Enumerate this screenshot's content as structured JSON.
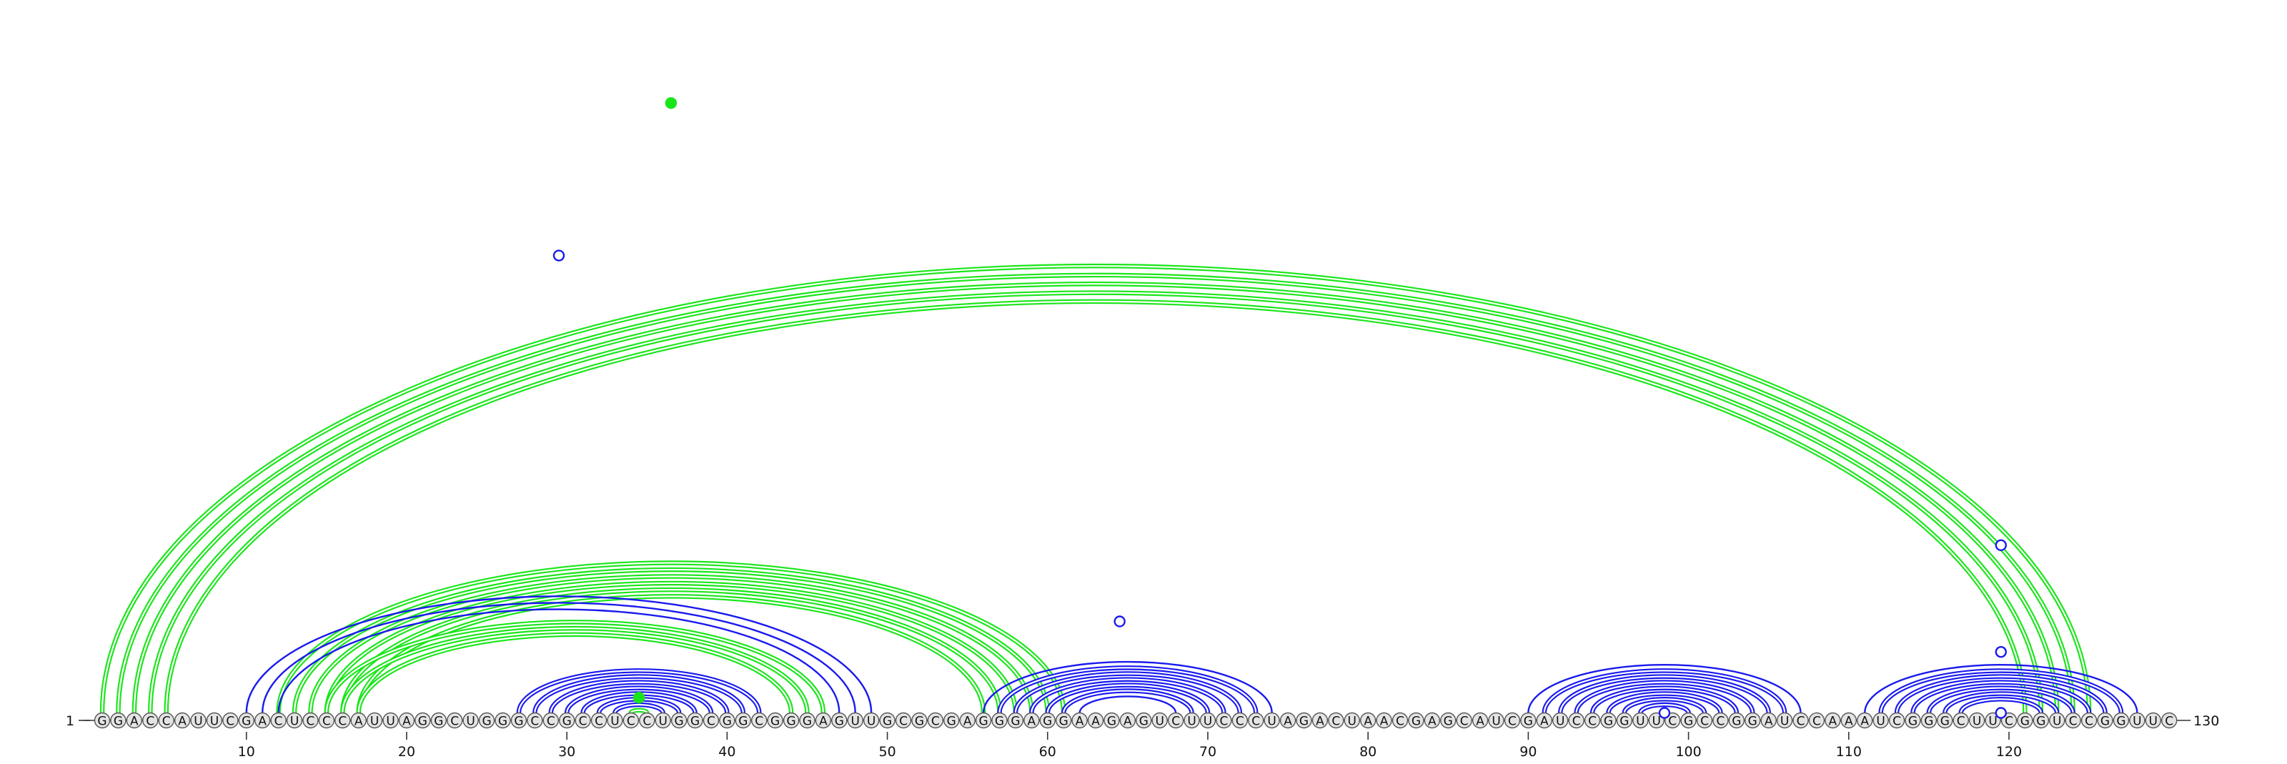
{
  "diagram": {
    "sequence": "GGACCAUUCGACUCCCAUUAGGCUGGGCCGCCUCCUGGCGGCGGGAGUUGCGCGAGGGAGGAAGAGUCUUCCCUAGACUAACGAGCAUCGAUCCGGUUCGCCGGAUCCAAAUCGGGCUUCGGUCCGGUUC",
    "start_label": "1",
    "end_label": "130",
    "ticks": [
      10,
      20,
      30,
      40,
      50,
      60,
      70,
      80,
      90,
      100,
      110,
      120
    ],
    "colors": {
      "green": "#19e619",
      "blue": "#1a1aee",
      "node_fill": "#e4e4e4",
      "node_stroke": "#555555",
      "text": "#111111"
    },
    "arcs": [
      {
        "i": 1,
        "j": 125,
        "color": "green",
        "double": true
      },
      {
        "i": 2,
        "j": 124,
        "color": "green",
        "double": true
      },
      {
        "i": 3,
        "j": 123,
        "color": "green",
        "double": true
      },
      {
        "i": 4,
        "j": 122,
        "color": "green",
        "double": true
      },
      {
        "i": 5,
        "j": 121,
        "color": "green",
        "double": true
      },
      {
        "i": 12,
        "j": 61,
        "color": "green",
        "double": true
      },
      {
        "i": 13,
        "j": 60,
        "color": "green",
        "double": true
      },
      {
        "i": 14,
        "j": 59,
        "color": "green",
        "double": true
      },
      {
        "i": 15,
        "j": 58,
        "color": "green",
        "double": true
      },
      {
        "i": 16,
        "j": 57,
        "color": "green",
        "double": true
      },
      {
        "i": 17,
        "j": 56,
        "color": "green",
        "double": true
      },
      {
        "i": 15,
        "j": 46,
        "color": "green",
        "double": true
      },
      {
        "i": 16,
        "j": 45,
        "color": "green",
        "double": true
      },
      {
        "i": 17,
        "j": 44,
        "color": "green",
        "double": true
      },
      {
        "i": 10,
        "j": 49,
        "color": "blue",
        "double": false
      },
      {
        "i": 11,
        "j": 48,
        "color": "blue",
        "double": false
      },
      {
        "i": 12,
        "j": 47,
        "color": "blue",
        "double": false
      },
      {
        "i": 27,
        "j": 42,
        "color": "blue",
        "double": true
      },
      {
        "i": 28,
        "j": 41,
        "color": "blue",
        "double": true
      },
      {
        "i": 29,
        "j": 40,
        "color": "blue",
        "double": true
      },
      {
        "i": 30,
        "j": 39,
        "color": "blue",
        "double": true
      },
      {
        "i": 31,
        "j": 38,
        "color": "blue",
        "double": true
      },
      {
        "i": 32,
        "j": 37,
        "color": "blue",
        "double": true
      },
      {
        "i": 33,
        "j": 36,
        "color": "blue",
        "double": true
      },
      {
        "i": 34,
        "j": 35,
        "color": "green",
        "double": true
      },
      {
        "i": 56,
        "j": 74,
        "color": "blue",
        "double": false
      },
      {
        "i": 57,
        "j": 73,
        "color": "blue",
        "double": true
      },
      {
        "i": 58,
        "j": 72,
        "color": "blue",
        "double": true
      },
      {
        "i": 59,
        "j": 71,
        "color": "blue",
        "double": true
      },
      {
        "i": 60,
        "j": 70,
        "color": "blue",
        "double": true
      },
      {
        "i": 61,
        "j": 69,
        "color": "blue",
        "double": true
      },
      {
        "i": 62,
        "j": 68,
        "color": "blue",
        "double": false
      },
      {
        "i": 90,
        "j": 107,
        "color": "blue",
        "double": false
      },
      {
        "i": 91,
        "j": 106,
        "color": "blue",
        "double": true
      },
      {
        "i": 92,
        "j": 105,
        "color": "blue",
        "double": true
      },
      {
        "i": 93,
        "j": 104,
        "color": "blue",
        "double": true
      },
      {
        "i": 94,
        "j": 103,
        "color": "blue",
        "double": true
      },
      {
        "i": 95,
        "j": 102,
        "color": "blue",
        "double": true
      },
      {
        "i": 96,
        "j": 101,
        "color": "blue",
        "double": true
      },
      {
        "i": 97,
        "j": 100,
        "color": "blue",
        "double": true
      },
      {
        "i": 111,
        "j": 128,
        "color": "blue",
        "double": false
      },
      {
        "i": 112,
        "j": 127,
        "color": "blue",
        "double": true
      },
      {
        "i": 113,
        "j": 126,
        "color": "blue",
        "double": true
      },
      {
        "i": 114,
        "j": 125,
        "color": "blue",
        "double": true
      },
      {
        "i": 115,
        "j": 124,
        "color": "blue",
        "double": true
      },
      {
        "i": 116,
        "j": 123,
        "color": "blue",
        "double": true
      },
      {
        "i": 117,
        "j": 122,
        "color": "blue",
        "double": true
      }
    ],
    "markers": [
      {
        "pos": 36.5,
        "level": 0.4,
        "fill": "green"
      },
      {
        "pos": 29.5,
        "level": 0.3,
        "fill": "white",
        "stroke": "blue"
      },
      {
        "pos": 34.5,
        "level": 0.01,
        "fill": "green"
      },
      {
        "pos": 64.5,
        "level": 0.06,
        "fill": "white",
        "stroke": "blue"
      },
      {
        "pos": 98.5,
        "level": 0.0,
        "fill": "white",
        "stroke": "blue"
      },
      {
        "pos": 119.5,
        "level": 0.11,
        "fill": "white",
        "stroke": "blue"
      },
      {
        "pos": 119.5,
        "level": 0.04,
        "fill": "white",
        "stroke": "blue"
      },
      {
        "pos": 119.5,
        "level": 0.0,
        "fill": "white",
        "stroke": "blue"
      }
    ]
  }
}
